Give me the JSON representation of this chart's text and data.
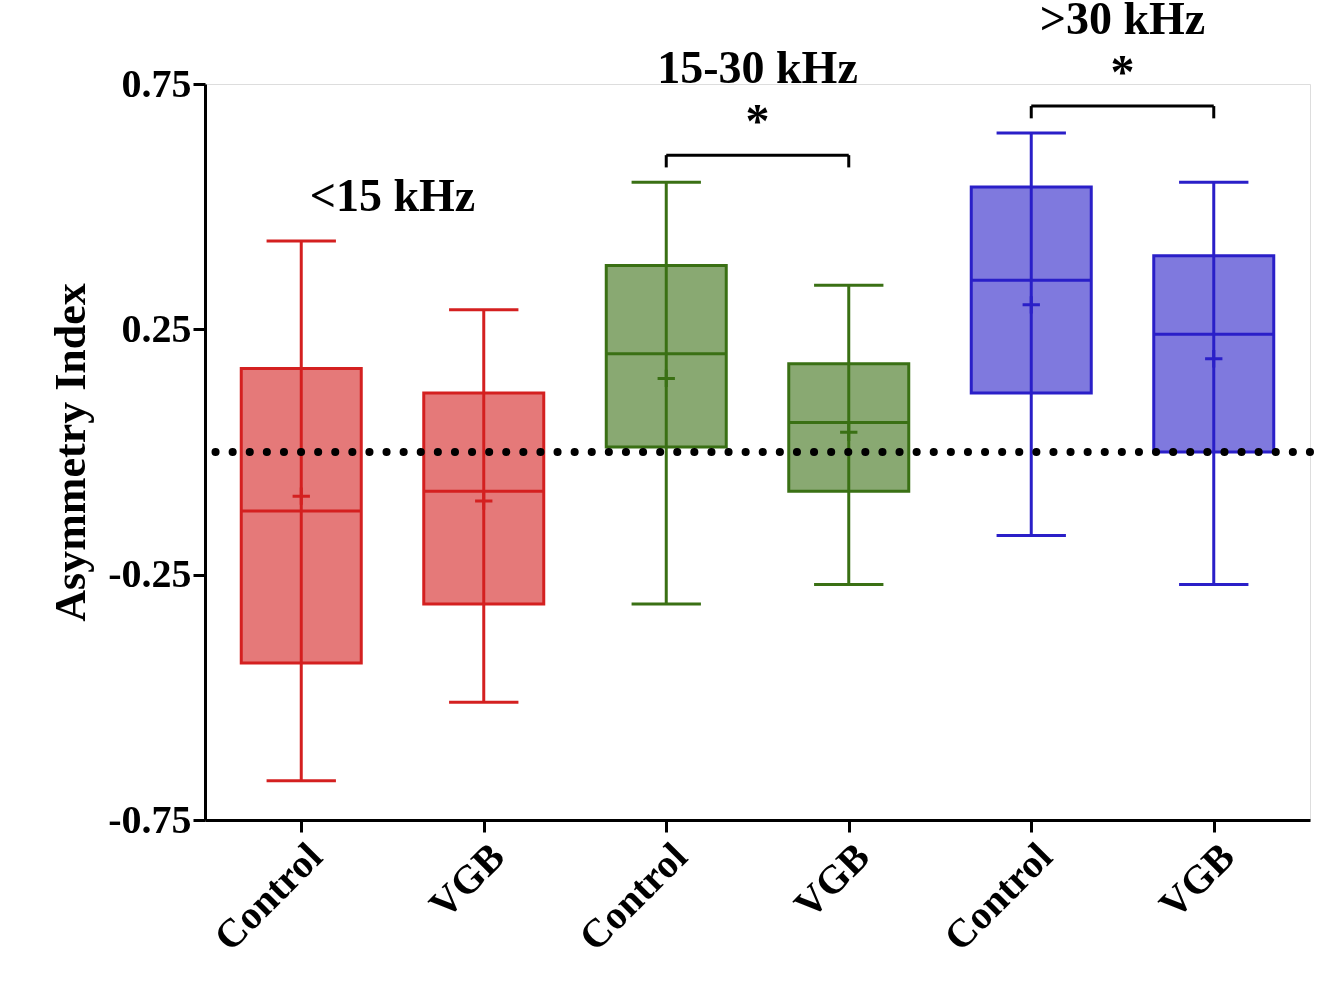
{
  "chart_data": {
    "type": "box",
    "ylabel": "Asymmetry Index",
    "categories": [
      "Control",
      "VGB",
      "Control",
      "VGB",
      "Control",
      "VGB"
    ],
    "colors": [
      "#d42020",
      "#d42020",
      "#3a7014",
      "#3a7014",
      "#2a1fc8",
      "#2a1fc8"
    ],
    "boxes": [
      {
        "low": -0.67,
        "q1": -0.43,
        "median": -0.12,
        "q3": 0.17,
        "high": 0.43,
        "mean": -0.09
      },
      {
        "low": -0.51,
        "q1": -0.31,
        "median": -0.08,
        "q3": 0.12,
        "high": 0.29,
        "mean": -0.1
      },
      {
        "low": -0.31,
        "q1": 0.01,
        "median": 0.2,
        "q3": 0.38,
        "high": 0.55,
        "mean": 0.15
      },
      {
        "low": -0.27,
        "q1": -0.08,
        "median": 0.06,
        "q3": 0.18,
        "high": 0.34,
        "mean": 0.04
      },
      {
        "low": -0.17,
        "q1": 0.12,
        "median": 0.35,
        "q3": 0.54,
        "high": 0.65,
        "mean": 0.3
      },
      {
        "low": -0.27,
        "q1": 0.0,
        "median": 0.24,
        "q3": 0.4,
        "high": 0.55,
        "mean": 0.19
      }
    ],
    "ylim": [
      -0.75,
      0.75
    ],
    "yticks": [
      -0.75,
      -0.25,
      0.25,
      0.75
    ],
    "ref_lines": [
      {
        "axis": "y",
        "value": 0,
        "line_style": "dotted",
        "color": "#000000"
      }
    ],
    "annotations": [
      "<15 kHz",
      "15-30 kHz",
      ">30 kHz",
      "*",
      "*"
    ],
    "grid": false
  }
}
